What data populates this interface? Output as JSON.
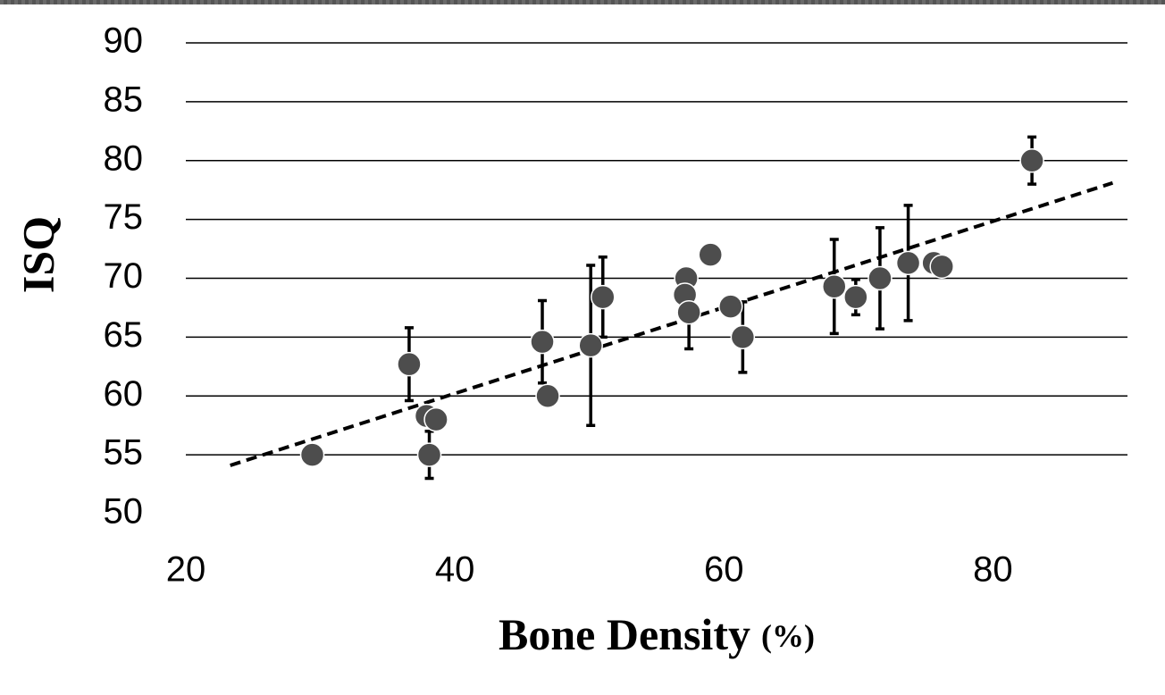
{
  "chart_data": {
    "type": "scatter",
    "ylabel": "ISQ",
    "xlabel": "Bone Density",
    "xlabel_unit": "(%)",
    "x": [
      29.4,
      36.6,
      37.9,
      38.1,
      38.6,
      46.5,
      46.9,
      50.1,
      51.0,
      57.2,
      57.1,
      57.4,
      59.0,
      60.5,
      61.4,
      68.2,
      69.8,
      71.6,
      73.7,
      75.6,
      76.2,
      82.9
    ],
    "values": [
      55.0,
      62.7,
      58.3,
      55.0,
      58.0,
      64.6,
      60.0,
      64.3,
      68.4,
      70.0,
      68.6,
      67.1,
      72.0,
      67.6,
      65.0,
      69.3,
      68.4,
      70.0,
      71.3,
      71.3,
      71.0,
      80.0
    ],
    "errors": [
      null,
      3.1,
      null,
      2.0,
      null,
      3.5,
      0.4,
      6.8,
      3.4,
      null,
      null,
      3.1,
      0.4,
      null,
      3.0,
      4.0,
      1.5,
      4.3,
      4.9,
      null,
      null,
      2.0
    ],
    "color": "#4d4d4d",
    "trendline": {
      "x": [
        23.3,
        88.9
      ],
      "y": [
        54.1,
        78.1
      ]
    },
    "xlim": [
      20,
      90
    ],
    "xticks": [
      20,
      40,
      60,
      80
    ],
    "ylim": [
      50,
      90
    ],
    "yticks": [
      50,
      55,
      60,
      65,
      70,
      75,
      80,
      85,
      90
    ],
    "grid": true
  }
}
